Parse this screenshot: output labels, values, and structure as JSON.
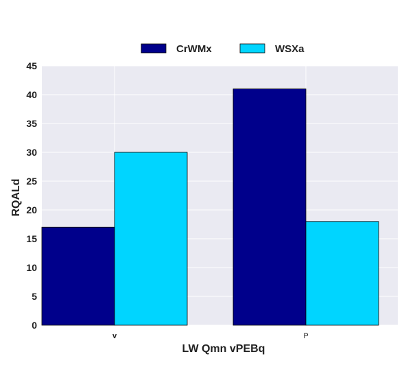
{
  "chart_data": {
    "type": "bar",
    "categories": [
      "v",
      "P"
    ],
    "series": [
      {
        "name": "CrWMx",
        "values": [
          17,
          41
        ],
        "color": "#00008b"
      },
      {
        "name": "WSXa",
        "values": [
          30,
          18
        ],
        "color": "#00d5ff"
      }
    ],
    "title": "",
    "xlabel": "LW Qmn vPEBq",
    "ylabel": "RQALd",
    "ylim": [
      0,
      45
    ],
    "yticks": [
      0,
      5,
      10,
      15,
      20,
      25,
      30,
      35,
      40,
      45
    ],
    "grid": true,
    "legend_position": "top-center",
    "plot_background": "#eaeaf2",
    "grid_color": "#ffffff"
  }
}
